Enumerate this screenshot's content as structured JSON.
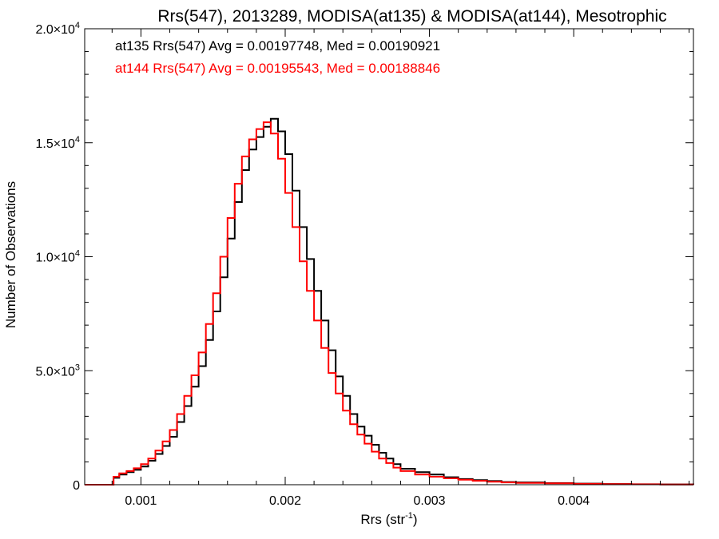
{
  "chart_data": {
    "type": "line",
    "title": "Rrs(547), 2013289, MODISA(at135) & MODISA(at144), Mesotrophic",
    "xlabel": {
      "base": "Rrs (str",
      "sup": "-1",
      "close": ")"
    },
    "ylabel": "Number of Observations",
    "xlim": [
      0.00061,
      0.00483
    ],
    "ylim": [
      0,
      20000
    ],
    "x_ticks": [
      {
        "value": 0.001,
        "label": "0.001"
      },
      {
        "value": 0.002,
        "label": "0.002"
      },
      {
        "value": 0.003,
        "label": "0.003"
      },
      {
        "value": 0.004,
        "label": "0.004"
      }
    ],
    "y_ticks": [
      {
        "value": 0,
        "base": "0",
        "sup": ""
      },
      {
        "value": 5000,
        "base": "5.0×10",
        "sup": "3"
      },
      {
        "value": 10000,
        "base": "1.0×10",
        "sup": "4"
      },
      {
        "value": 15000,
        "base": "1.5×10",
        "sup": "4"
      },
      {
        "value": 20000,
        "base": "2.0×10",
        "sup": "4"
      }
    ],
    "annotations": [
      {
        "text": "at135 Rrs(547) Avg = 0.00197748, Med = 0.00190921",
        "color": "#000000"
      },
      {
        "text": "at144 Rrs(547) Avg = 0.00195543, Med = 0.00188846",
        "color": "#ff0000"
      }
    ],
    "series": [
      {
        "color": "#000000",
        "x": [
          0.00061,
          0.00079,
          0.00081,
          0.00085,
          0.0009,
          0.00095,
          0.001,
          0.00105,
          0.0011,
          0.00115,
          0.0012,
          0.00125,
          0.0013,
          0.00135,
          0.0014,
          0.00145,
          0.0015,
          0.00155,
          0.0016,
          0.00165,
          0.0017,
          0.00175,
          0.0018,
          0.00185,
          0.0019,
          0.00195,
          0.002,
          0.00205,
          0.0021,
          0.00215,
          0.0022,
          0.00225,
          0.0023,
          0.00235,
          0.0024,
          0.00245,
          0.0025,
          0.00255,
          0.0026,
          0.00265,
          0.0027,
          0.00275,
          0.0028,
          0.0029,
          0.003,
          0.0031,
          0.0032,
          0.0033,
          0.0034,
          0.0035,
          0.0036,
          0.0038,
          0.004,
          0.0042,
          0.0044,
          0.0046,
          0.00483
        ],
        "y": [
          0,
          0,
          300,
          450,
          550,
          650,
          800,
          1050,
          1350,
          1700,
          2100,
          2750,
          3450,
          4300,
          5200,
          6350,
          7600,
          9100,
          10800,
          12400,
          13800,
          14700,
          15250,
          15700,
          16050,
          15500,
          14500,
          12900,
          11300,
          9900,
          8500,
          7200,
          5900,
          4750,
          3900,
          3100,
          2550,
          2150,
          1750,
          1400,
          1150,
          900,
          700,
          550,
          450,
          330,
          250,
          200,
          160,
          120,
          100,
          70,
          50,
          30,
          20,
          15,
          10
        ]
      },
      {
        "color": "#ff0000",
        "x": [
          0.00061,
          0.00079,
          0.00081,
          0.00085,
          0.0009,
          0.00095,
          0.001,
          0.00105,
          0.0011,
          0.00115,
          0.0012,
          0.00125,
          0.0013,
          0.00135,
          0.0014,
          0.00145,
          0.0015,
          0.00155,
          0.0016,
          0.00165,
          0.0017,
          0.00175,
          0.0018,
          0.00185,
          0.0019,
          0.00195,
          0.002,
          0.00205,
          0.0021,
          0.00215,
          0.0022,
          0.00225,
          0.0023,
          0.00235,
          0.0024,
          0.00245,
          0.0025,
          0.00255,
          0.0026,
          0.00265,
          0.0027,
          0.00275,
          0.0028,
          0.0029,
          0.003,
          0.0031,
          0.0032,
          0.0033,
          0.0034,
          0.0035,
          0.0036,
          0.0038,
          0.004,
          0.0042,
          0.0044,
          0.0046,
          0.00483
        ],
        "y": [
          0,
          0,
          350,
          500,
          600,
          720,
          900,
          1150,
          1500,
          1900,
          2400,
          3100,
          3900,
          4800,
          5800,
          7050,
          8400,
          10000,
          11700,
          13200,
          14400,
          15150,
          15600,
          15900,
          15400,
          14300,
          12800,
          11300,
          9800,
          8500,
          7200,
          6000,
          4900,
          4000,
          3250,
          2650,
          2200,
          1800,
          1450,
          1150,
          950,
          750,
          600,
          450,
          350,
          280,
          220,
          170,
          130,
          100,
          80,
          60,
          40,
          25,
          18,
          12,
          8
        ]
      }
    ]
  }
}
